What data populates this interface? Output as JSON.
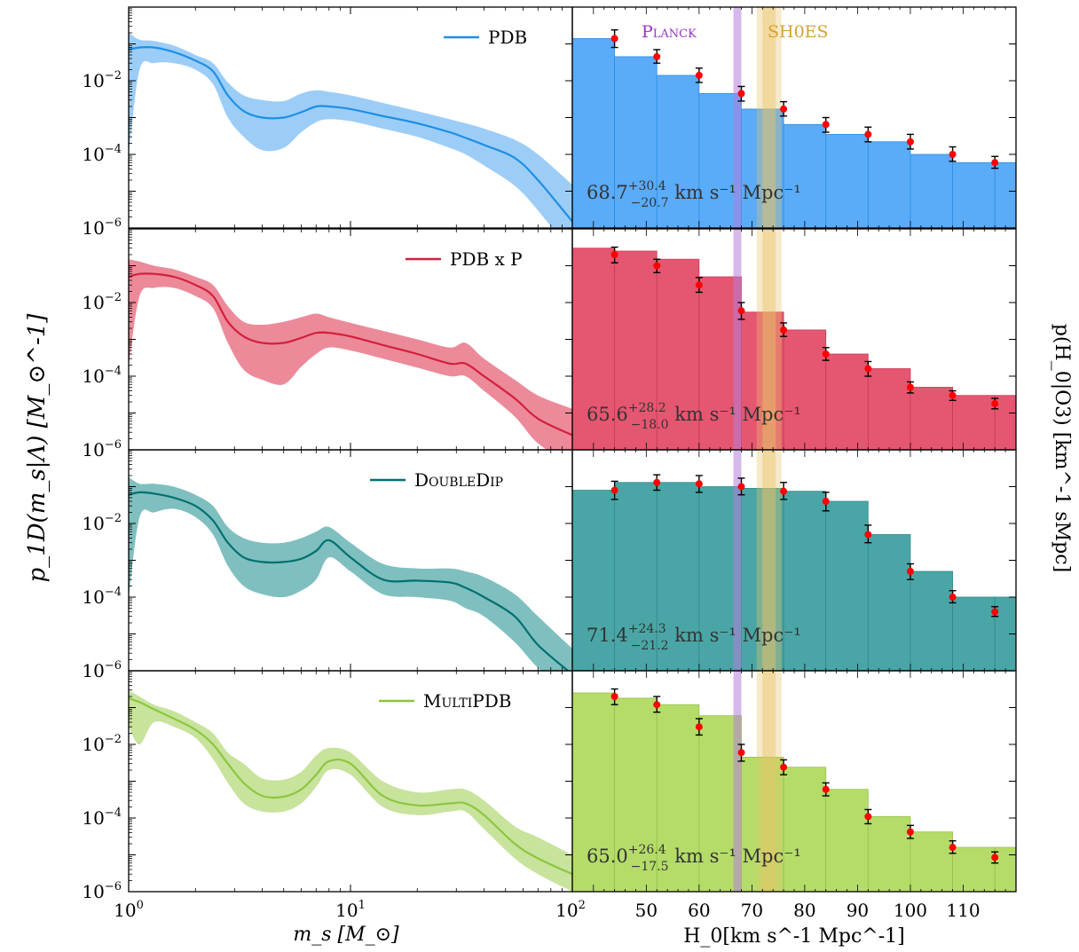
{
  "figure": {
    "left_ylabel": "p_1D(m_s|Λ) [M_⊙^-1]",
    "right_ylabel": "p(H_0|O3) [km^-1 sMpc]",
    "left_xlabel": "m_s [M_⊙]",
    "right_xlabel": "H_0[km s^-1 Mpc^-1]",
    "planck_label": "Planck",
    "shoes_label": "SH0ES",
    "colors": {
      "planck": "#b57edc",
      "shoes": "#e8c468",
      "points": "#ff0000",
      "errorbar": "#000000"
    }
  },
  "chart_data": [
    {
      "type": "area",
      "panel": "mass-spectrum",
      "xscale": "log",
      "yscale": "log",
      "xlim": [
        1,
        100
      ],
      "ylim": [
        1e-06,
        1
      ],
      "x_ticks": [
        "10^0",
        "10^1",
        "10^2"
      ],
      "y_ticks": [
        "10^-6",
        "10^-4",
        "10^-2"
      ],
      "x": [
        1.0,
        1.12,
        1.3,
        1.6,
        2.0,
        2.4,
        2.8,
        3.3,
        4.0,
        5.0,
        6.0,
        7.0,
        8.0,
        10.0,
        14.0,
        20.0,
        28.0,
        33.0,
        40.0,
        55.0,
        70.0,
        100.0
      ],
      "series": [
        {
          "name": "PDB",
          "color": "#1e8fe6",
          "fill": "#9ccdf7",
          "median": [
            0.07,
            0.08,
            0.08,
            0.06,
            0.035,
            0.018,
            0.004,
            0.0015,
            0.001,
            0.001,
            0.0014,
            0.002,
            0.002,
            0.0017,
            0.0011,
            0.0007,
            0.0004,
            0.00028,
            0.00018,
            8e-05,
            2e-05,
            1.5e-06
          ],
          "lower": [
            0.0001,
            0.02,
            0.03,
            0.03,
            0.02,
            0.008,
            0.001,
            0.0003,
            0.00013,
            0.00015,
            0.0004,
            0.00075,
            0.0009,
            0.0008,
            0.0005,
            0.0003,
            0.00015,
            0.0001,
            5e-05,
            1.4e-05,
            3e-06,
            2e-07
          ],
          "upper": [
            0.2,
            0.13,
            0.12,
            0.09,
            0.05,
            0.03,
            0.009,
            0.004,
            0.003,
            0.0028,
            0.0045,
            0.0055,
            0.005,
            0.004,
            0.0025,
            0.0015,
            0.0009,
            0.0007,
            0.0005,
            0.00025,
            0.0001,
            1.5e-05
          ]
        },
        {
          "name": "PDB x P",
          "color": "#d41f3d",
          "fill": "#ec8a9a",
          "median": [
            0.05,
            0.06,
            0.06,
            0.05,
            0.03,
            0.015,
            0.003,
            0.0012,
            0.0008,
            0.0008,
            0.0011,
            0.0015,
            0.0015,
            0.0012,
            0.0007,
            0.0004,
            0.00022,
            0.00022,
            0.0001,
            2.5e-05,
            7e-06,
            2.5e-06
          ],
          "lower": [
            0.0002,
            0.015,
            0.025,
            0.025,
            0.015,
            0.007,
            0.0008,
            0.00015,
            8e-05,
            6e-05,
            0.00018,
            0.0004,
            0.0006,
            0.0005,
            0.0003,
            0.00017,
            0.0001,
            0.0001,
            4e-05,
            8e-06,
            1.5e-06,
            4e-07
          ],
          "upper": [
            0.15,
            0.13,
            0.1,
            0.08,
            0.05,
            0.03,
            0.008,
            0.003,
            0.0025,
            0.003,
            0.004,
            0.005,
            0.004,
            0.0028,
            0.0017,
            0.001,
            0.0006,
            0.0008,
            0.0003,
            8e-05,
            3e-05,
            1.3e-05
          ]
        },
        {
          "name": "DoubleDip",
          "color": "#007070",
          "fill": "#7fbfbf",
          "median": [
            0.06,
            0.07,
            0.065,
            0.05,
            0.03,
            0.012,
            0.003,
            0.0012,
            0.0009,
            0.0009,
            0.0011,
            0.0018,
            0.0035,
            0.0012,
            0.0003,
            0.00028,
            0.00025,
            0.00018,
            0.0001,
            3e-05,
            5e-06,
            8e-07
          ],
          "lower": [
            0.0001,
            0.015,
            0.02,
            0.025,
            0.015,
            0.005,
            0.0007,
            0.0002,
            0.00012,
            0.0001,
            0.00015,
            0.0003,
            0.0012,
            0.0005,
            0.00012,
            0.0001,
            8e-05,
            5e-05,
            3e-05,
            6e-06,
            1.2e-06,
            2e-07
          ],
          "upper": [
            0.18,
            0.12,
            0.12,
            0.1,
            0.06,
            0.03,
            0.008,
            0.004,
            0.003,
            0.003,
            0.004,
            0.006,
            0.008,
            0.003,
            0.0008,
            0.0006,
            0.0006,
            0.0005,
            0.00035,
            0.00012,
            3e-05,
            4e-06
          ]
        },
        {
          "name": "MultiPDB",
          "color": "#8cc63f",
          "fill": "#c8e39c",
          "median": [
            0.18,
            0.14,
            0.09,
            0.05,
            0.025,
            0.01,
            0.003,
            0.0009,
            0.0004,
            0.00038,
            0.0006,
            0.0015,
            0.0035,
            0.003,
            0.0004,
            0.00022,
            0.00025,
            0.00025,
            0.00012,
            2e-05,
            8e-06,
            3e-06
          ],
          "lower": [
            0.03,
            0.01,
            0.04,
            0.03,
            0.015,
            0.004,
            0.0009,
            0.00025,
            0.00015,
            0.00015,
            0.00025,
            0.0007,
            0.002,
            0.0015,
            0.0002,
            0.00012,
            0.00015,
            0.00015,
            5e-05,
            8e-06,
            3e-06,
            1e-06
          ],
          "upper": [
            0.3,
            0.2,
            0.12,
            0.08,
            0.04,
            0.02,
            0.006,
            0.003,
            0.0012,
            0.0011,
            0.0018,
            0.005,
            0.008,
            0.006,
            0.001,
            0.0005,
            0.0006,
            0.0006,
            0.0003,
            6e-05,
            3e-05,
            1e-05
          ]
        }
      ]
    },
    {
      "type": "bar",
      "panel": "hubble-posterior",
      "yscale": "log",
      "xlim": [
        36,
        120
      ],
      "ylim": [
        1e-06,
        1
      ],
      "x_ticks": [
        50,
        60,
        70,
        80,
        90,
        100,
        110
      ],
      "bin_edges": [
        36,
        44,
        52,
        60,
        68,
        76,
        84,
        92,
        100,
        108,
        116,
        120
      ],
      "bin_centers": [
        44,
        52,
        60,
        68,
        76,
        84,
        92,
        100,
        108,
        116
      ],
      "planck_band": [
        66.5,
        68.0
      ],
      "shoes_band": [
        71.5,
        75.0
      ],
      "series": [
        {
          "name": "PDB",
          "bar_color": "#5aabf8",
          "edge_color": "#2f8ee0",
          "values": [
            0.14,
            0.045,
            0.014,
            0.0045,
            0.0017,
            0.00065,
            0.00035,
            0.00022,
            0.0001,
            6e-05
          ],
          "bar_heights": [
            0.14,
            0.045,
            0.014,
            0.0045,
            0.0017,
            0.00065,
            0.00035,
            0.00022,
            0.0001,
            6e-05
          ],
          "err_low": [
            0.08,
            0.03,
            0.009,
            0.0028,
            0.0011,
            0.0004,
            0.00022,
            0.00014,
            6.5e-05,
            4.2e-05
          ],
          "err_high": [
            0.24,
            0.07,
            0.022,
            0.007,
            0.0027,
            0.001,
            0.00055,
            0.00035,
            0.00016,
            8.8e-05
          ],
          "annotation_main": "68.7",
          "annotation_sup": "+30.4",
          "annotation_sub": "−20.7",
          "annotation_unit": " km s⁻¹ Mpc⁻¹"
        },
        {
          "name": "PDB x P",
          "bar_color": "#e55670",
          "edge_color": "#c93a55",
          "values": [
            0.2,
            0.1,
            0.03,
            0.006,
            0.0018,
            0.0004,
            0.00016,
            5e-05,
            3e-05,
            1.8e-05
          ],
          "bar_heights": [
            0.3,
            0.25,
            0.15,
            0.05,
            0.0055,
            0.0018,
            0.0004,
            0.00016,
            5e-05,
            3e-05
          ],
          "err_low": [
            0.12,
            0.065,
            0.019,
            0.0035,
            0.0012,
            0.00027,
            0.0001,
            3.5e-05,
            2.2e-05,
            1.3e-05
          ],
          "err_high": [
            0.32,
            0.15,
            0.048,
            0.01,
            0.0028,
            0.0006,
            0.00025,
            7e-05,
            4e-05,
            2.5e-05
          ],
          "annotation_main": "65.6",
          "annotation_sup": "+28.2",
          "annotation_sub": "−18.0",
          "annotation_unit": " km s⁻¹ Mpc⁻¹"
        },
        {
          "name": "DoubleDip",
          "bar_color": "#4aa6a6",
          "edge_color": "#2f8a8a",
          "values": [
            0.08,
            0.13,
            0.12,
            0.1,
            0.075,
            0.04,
            0.005,
            0.0005,
            0.0001,
            4e-05
          ],
          "bar_heights": [
            0.08,
            0.13,
            0.13,
            0.1,
            0.09,
            0.075,
            0.04,
            0.005,
            0.0005,
            0.0001
          ],
          "err_low": [
            0.045,
            0.08,
            0.07,
            0.06,
            0.045,
            0.022,
            0.003,
            0.0003,
            7e-05,
            3e-05
          ],
          "err_high": [
            0.14,
            0.21,
            0.2,
            0.17,
            0.13,
            0.07,
            0.009,
            0.0008,
            0.00015,
            5.5e-05
          ],
          "annotation_main": "71.4",
          "annotation_sup": "+24.3",
          "annotation_sub": "−21.2",
          "annotation_unit": " km s⁻¹ Mpc⁻¹"
        },
        {
          "name": "MultiPDB",
          "bar_color": "#b5dc69",
          "edge_color": "#97c04a",
          "values": [
            0.2,
            0.12,
            0.03,
            0.006,
            0.0024,
            0.0006,
            0.00011,
            4.2e-05,
            1.6e-05,
            8.5e-06
          ],
          "bar_heights": [
            0.25,
            0.18,
            0.12,
            0.06,
            0.0045,
            0.0024,
            0.0006,
            0.00011,
            4.2e-05,
            1.6e-05
          ],
          "err_low": [
            0.12,
            0.075,
            0.018,
            0.0035,
            0.0015,
            0.0004,
            7e-05,
            2.8e-05,
            1.1e-05,
            6e-06
          ],
          "err_high": [
            0.32,
            0.2,
            0.05,
            0.01,
            0.0038,
            0.0009,
            0.00017,
            6.3e-05,
            2.4e-05,
            1.2e-05
          ],
          "annotation_main": "65.0",
          "annotation_sup": "+26.4",
          "annotation_sub": "−17.5",
          "annotation_unit": " km s⁻¹ Mpc⁻¹"
        }
      ]
    }
  ]
}
